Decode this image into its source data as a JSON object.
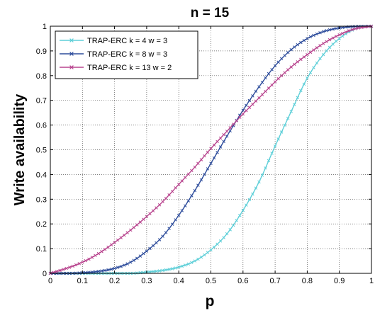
{
  "chart_data": {
    "type": "line",
    "title": "n =  15",
    "xlabel": "p",
    "ylabel": "Write availability",
    "xlim": [
      0,
      1
    ],
    "ylim": [
      0,
      1
    ],
    "xticks": [
      "0",
      "0.1",
      "0.2",
      "0.3",
      "0.4",
      "0.5",
      "0.6",
      "0.7",
      "0.8",
      "0.9",
      "1"
    ],
    "yticks": [
      "0",
      "0.1",
      "0.2",
      "0.3",
      "0.4",
      "0.5",
      "0.6",
      "0.7",
      "0.8",
      "0.9",
      "1"
    ],
    "grid": true,
    "legend_position": "top-left",
    "x": [
      0,
      0.05,
      0.1,
      0.15,
      0.2,
      0.25,
      0.3,
      0.35,
      0.4,
      0.45,
      0.5,
      0.55,
      0.6,
      0.65,
      0.7,
      0.75,
      0.8,
      0.85,
      0.9,
      0.95,
      1
    ],
    "series": [
      {
        "name": "TRAP-ERC k = 4 w = 3",
        "color": "#5ecfd8",
        "marker": "x",
        "values": [
          0,
          0.0,
          0.0,
          0.0,
          0.0,
          0.0,
          0.005,
          0.012,
          0.025,
          0.05,
          0.095,
          0.16,
          0.255,
          0.37,
          0.515,
          0.655,
          0.79,
          0.885,
          0.95,
          0.99,
          1
        ]
      },
      {
        "name": "TRAP-ERC k = 8 w = 3",
        "color": "#2e4d9c",
        "marker": "x",
        "values": [
          0,
          0.0,
          0.002,
          0.008,
          0.02,
          0.045,
          0.09,
          0.15,
          0.235,
          0.335,
          0.445,
          0.555,
          0.66,
          0.755,
          0.84,
          0.905,
          0.95,
          0.978,
          0.993,
          0.999,
          1
        ]
      },
      {
        "name": "TRAP-ERC k = 13 w = 2",
        "color": "#b8448e",
        "marker": "x",
        "values": [
          0,
          0.02,
          0.045,
          0.08,
          0.125,
          0.175,
          0.23,
          0.29,
          0.36,
          0.43,
          0.505,
          0.575,
          0.645,
          0.71,
          0.775,
          0.835,
          0.885,
          0.93,
          0.965,
          0.99,
          1
        ]
      }
    ]
  }
}
